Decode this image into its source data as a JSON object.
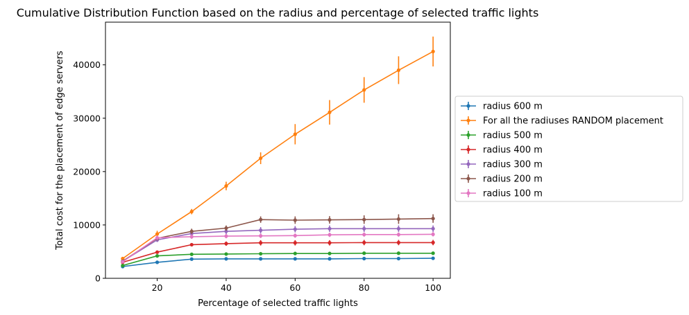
{
  "chart_data": {
    "type": "line",
    "title": "Cumulative Distribution Function based on the radius and percentage of selected traffic lights",
    "xlabel": "Percentage of selected traffic lights",
    "ylabel": "Total cost for the placement of edge servers",
    "x": [
      10,
      20,
      30,
      40,
      50,
      60,
      70,
      80,
      90,
      100
    ],
    "xlim": [
      5,
      105
    ],
    "ylim": [
      0,
      48000
    ],
    "xticks": [
      20,
      40,
      60,
      80,
      100
    ],
    "yticks": [
      0,
      10000,
      20000,
      30000,
      40000
    ],
    "grid": false,
    "legend_position": "center-left outside right",
    "series": [
      {
        "name": "radius 600 m",
        "color": "#1f77b4",
        "values": [
          2200,
          3000,
          3600,
          3650,
          3650,
          3650,
          3650,
          3700,
          3700,
          3750
        ],
        "errors": [
          100,
          100,
          100,
          100,
          100,
          100,
          100,
          100,
          100,
          100
        ]
      },
      {
        "name": "For all the radiuses RANDOM placement",
        "color": "#ff7f0e",
        "values": [
          3700,
          8300,
          12500,
          17300,
          22500,
          27000,
          31100,
          35300,
          39000,
          42500
        ],
        "errors": [
          300,
          600,
          500,
          800,
          1100,
          1900,
          2300,
          2400,
          2600,
          2800
        ]
      },
      {
        "name": "radius 500 m",
        "color": "#2ca02c",
        "values": [
          2400,
          4200,
          4500,
          4550,
          4600,
          4650,
          4650,
          4700,
          4700,
          4700
        ],
        "errors": [
          100,
          150,
          150,
          150,
          150,
          150,
          150,
          150,
          150,
          150
        ]
      },
      {
        "name": "radius 400 m",
        "color": "#d62728",
        "values": [
          3000,
          4900,
          6300,
          6500,
          6650,
          6650,
          6650,
          6700,
          6700,
          6700
        ],
        "errors": [
          150,
          200,
          300,
          400,
          500,
          500,
          500,
          500,
          500,
          500
        ]
      },
      {
        "name": "radius 300 m",
        "color": "#9467bd",
        "values": [
          3200,
          7200,
          8400,
          8800,
          9000,
          9200,
          9300,
          9300,
          9300,
          9300
        ],
        "errors": [
          150,
          400,
          500,
          500,
          600,
          600,
          600,
          600,
          600,
          600
        ]
      },
      {
        "name": "radius 200 m",
        "color": "#8c564b",
        "values": [
          3200,
          7500,
          8800,
          9400,
          11000,
          10900,
          10950,
          11000,
          11100,
          11200
        ],
        "errors": [
          150,
          400,
          500,
          500,
          600,
          700,
          700,
          800,
          900,
          800
        ]
      },
      {
        "name": "radius 100 m",
        "color": "#e377c2",
        "values": [
          3100,
          7600,
          7800,
          7900,
          7950,
          8000,
          8150,
          8200,
          8200,
          8250
        ],
        "errors": [
          150,
          400,
          400,
          400,
          400,
          400,
          400,
          400,
          400,
          400
        ]
      }
    ]
  }
}
